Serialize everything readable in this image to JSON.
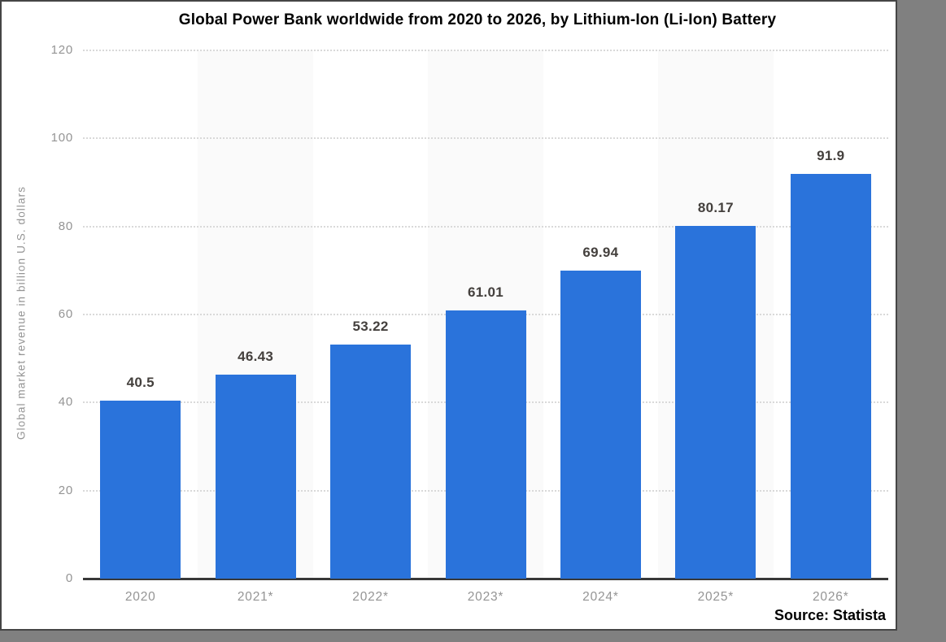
{
  "chart_data": {
    "type": "bar",
    "title": "Global Power Bank worldwide from 2020 to 2026, by Lithium-Ion (Li-Ion) Battery",
    "categories": [
      "2020",
      "2021*",
      "2022*",
      "2023*",
      "2024*",
      "2025*",
      "2026*"
    ],
    "values": [
      40.5,
      46.43,
      53.22,
      61.01,
      69.94,
      80.17,
      91.9
    ],
    "value_labels": [
      "40.5",
      "46.43",
      "53.22",
      "61.01",
      "69.94",
      "80.17",
      "91.9"
    ],
    "xlabel": "",
    "ylabel": "Global market revenue in billion U.S. dollars",
    "ylim": [
      0,
      120
    ],
    "yticks": [
      0,
      20,
      40,
      60,
      80,
      100,
      120
    ],
    "grid": "horizontal-dotted",
    "legend": "none",
    "source": "Source: Statista",
    "colors": {
      "bar": "#2a73db",
      "band": "#fafafa",
      "grid": "#d9d9d9",
      "axis_line": "#383838",
      "tick_label": "#949494",
      "value_label": "#44403d",
      "title": "#000000",
      "panel_background": "#ffffff",
      "panel_border": "#454545",
      "outer_background": "#808080"
    }
  }
}
